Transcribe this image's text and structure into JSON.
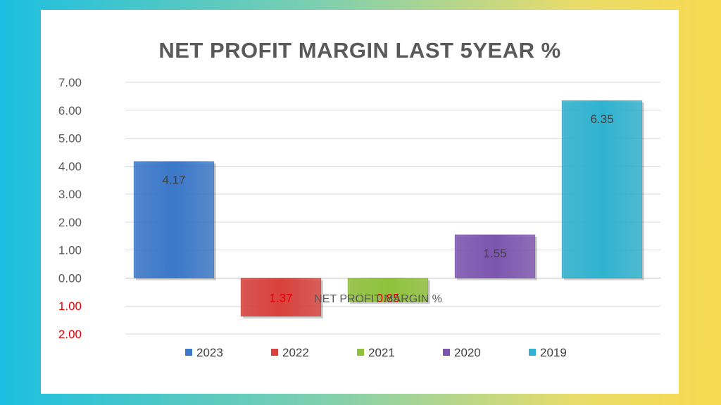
{
  "chart_data": {
    "type": "bar",
    "title": "NET PROFIT MARGIN LAST 5YEAR %",
    "xlabel": "NET PROFIT MARGIN %",
    "ylabel": "",
    "categories": [
      "2023",
      "2022",
      "2021",
      "2020",
      "2019"
    ],
    "values": [
      4.17,
      -1.37,
      -0.85,
      1.55,
      6.35
    ],
    "data_labels": [
      "4.17",
      "1.37",
      "0.85",
      "1.55",
      "6.35"
    ],
    "colors": [
      "#3a78c9",
      "#d9413c",
      "#8fc23a",
      "#7d55b0",
      "#2fb3d1"
    ],
    "ylim": [
      -2,
      7
    ],
    "yticks": [
      7,
      6,
      5,
      4,
      3,
      2,
      1,
      0,
      -1,
      -2
    ],
    "ytick_labels": [
      "7.00",
      "6.00",
      "5.00",
      "4.00",
      "3.00",
      "2.00",
      "1.00",
      "0.00",
      "1.00",
      "2.00"
    ],
    "negative_color": "#e00000",
    "grid": true,
    "legend": {
      "position": "bottom",
      "entries": [
        "2023",
        "2022",
        "2021",
        "2020",
        "2019"
      ]
    }
  }
}
